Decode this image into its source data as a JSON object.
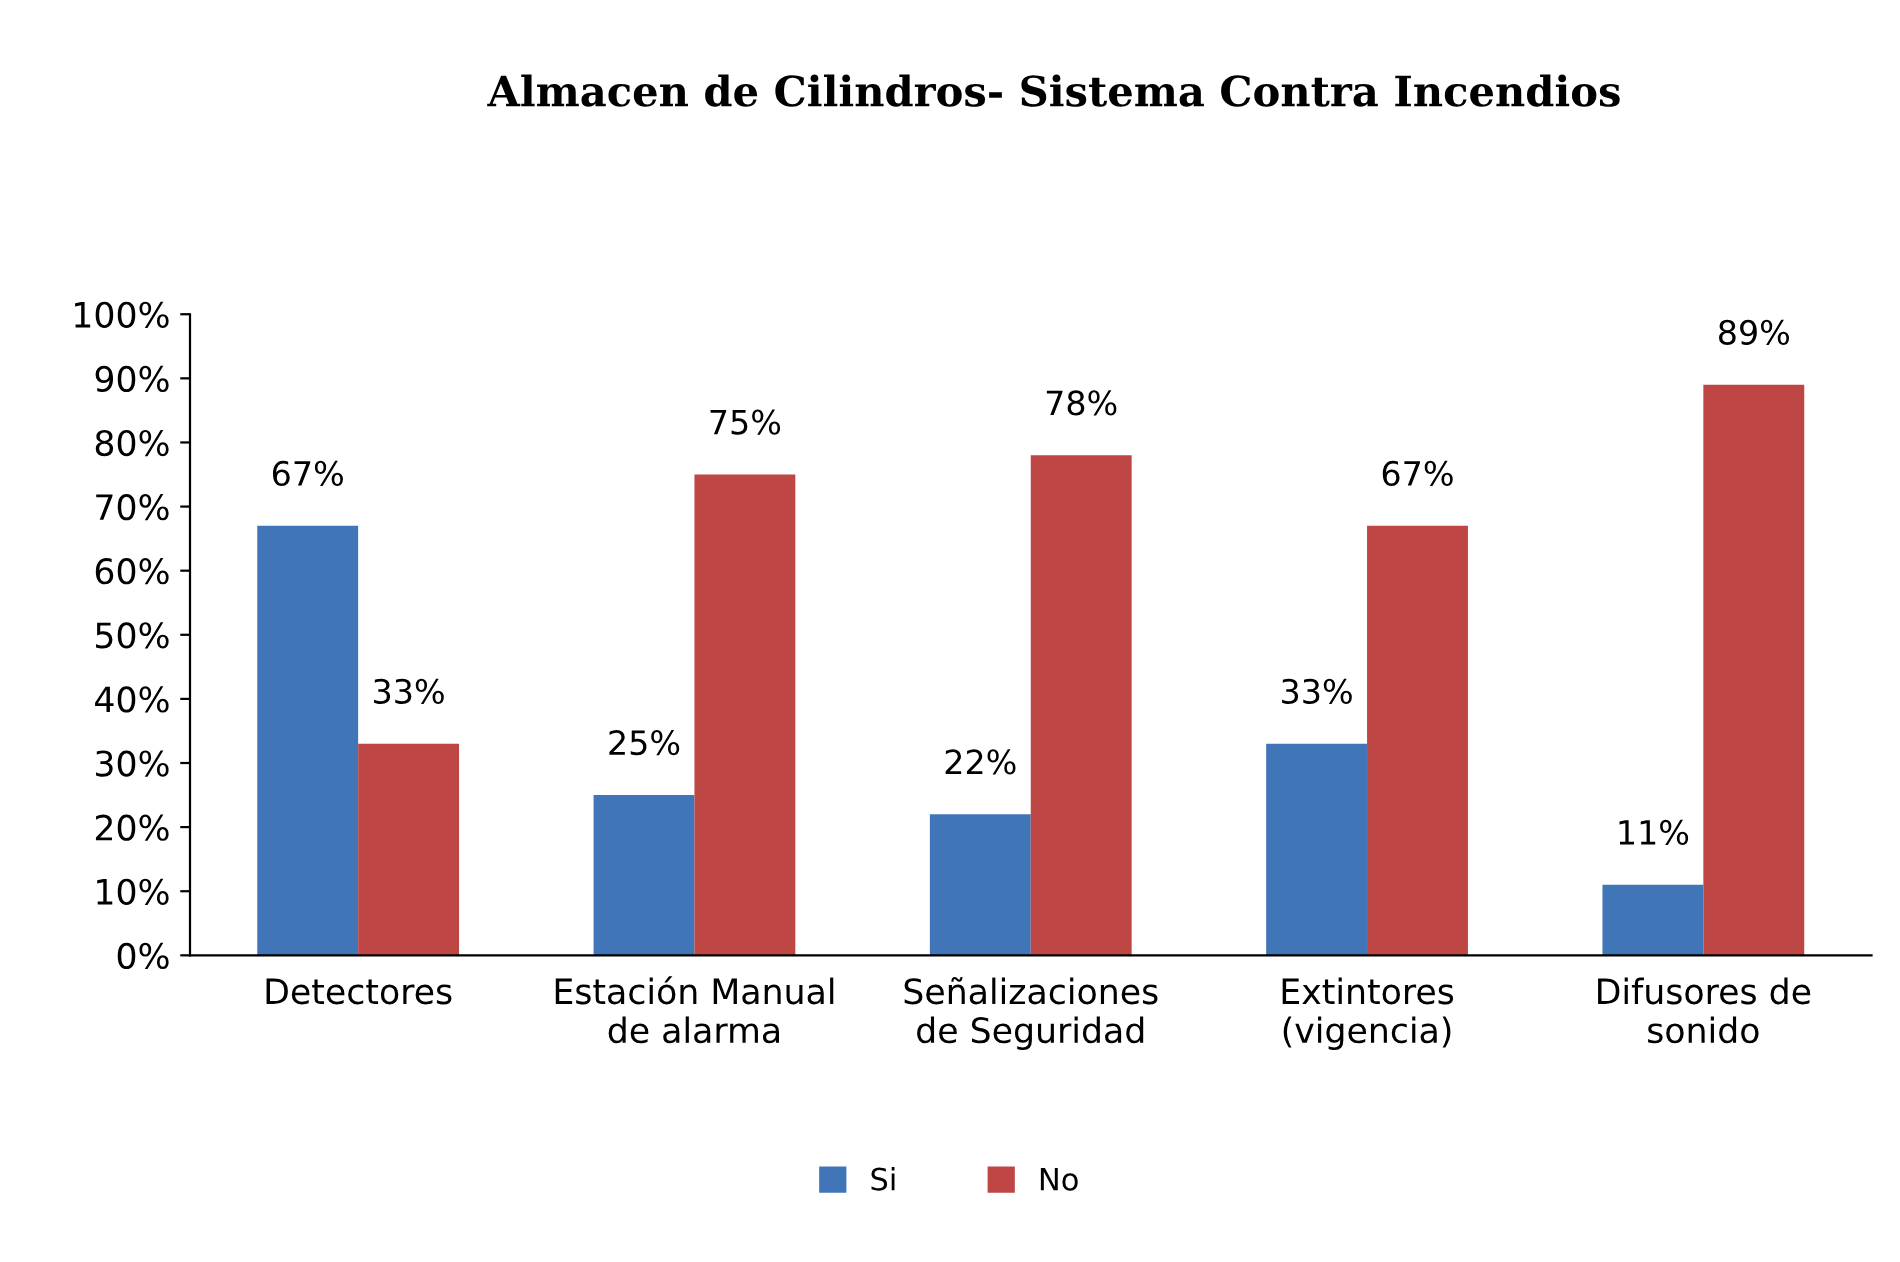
{
  "chart_data": {
    "type": "bar",
    "title": "Almacen de Cilindros- Sistema Contra Incendios",
    "categories": [
      "Detectores",
      "Estación Manual\nde alarma",
      "Señalizaciones\nde Seguridad",
      "Extintores\n(vigencia)",
      "Difusores de\nsonido"
    ],
    "series": [
      {
        "name": "Si",
        "color": "#4076b8",
        "values": [
          67,
          25,
          22,
          33,
          11
        ],
        "value_labels": [
          "67%",
          "25%",
          "22%",
          "33%",
          "11%"
        ]
      },
      {
        "name": "No",
        "color": "#be4644",
        "values": [
          33,
          75,
          78,
          67,
          89
        ],
        "value_labels": [
          "33%",
          "75%",
          "78%",
          "67%",
          "89%"
        ]
      }
    ],
    "ylim": [
      0,
      100
    ],
    "yticks": [
      {
        "value": 0,
        "label": "0%"
      },
      {
        "value": 10,
        "label": "10%"
      },
      {
        "value": 20,
        "label": "20%"
      },
      {
        "value": 30,
        "label": "30%"
      },
      {
        "value": 40,
        "label": "40%"
      },
      {
        "value": 50,
        "label": "50%"
      },
      {
        "value": 60,
        "label": "60%"
      },
      {
        "value": 70,
        "label": "70%"
      },
      {
        "value": 80,
        "label": "80%"
      },
      {
        "value": 90,
        "label": "90%"
      },
      {
        "value": 100,
        "label": "100%"
      }
    ],
    "grid": false,
    "legend": "bottom"
  }
}
